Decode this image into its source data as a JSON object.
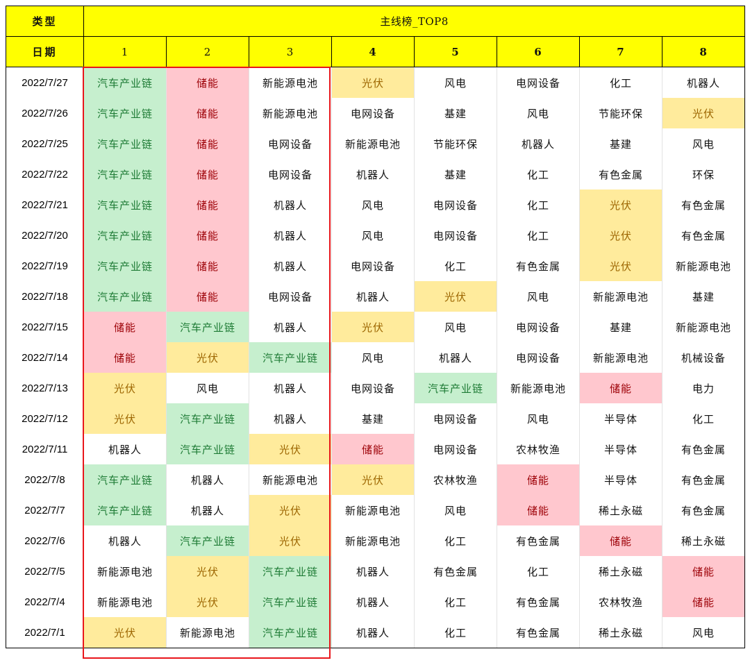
{
  "header": {
    "type_label": "类型",
    "table_title": "主线榜_TOP8",
    "date_label": "日期",
    "ranks": [
      "1",
      "2",
      "3",
      "4",
      "5",
      "6",
      "7",
      "8"
    ]
  },
  "highlight_colors": {
    "汽车产业链": "#c6efce",
    "储能": "#ffc7ce",
    "光伏": "#ffeb9c"
  },
  "header_color": "#ffff00",
  "focus_box_color": "#e8161b",
  "rows": [
    {
      "date": "2022/7/27",
      "sectors": [
        "汽车产业链",
        "储能",
        "新能源电池",
        "光伏",
        "风电",
        "电网设备",
        "化工",
        "机器人"
      ]
    },
    {
      "date": "2022/7/26",
      "sectors": [
        "汽车产业链",
        "储能",
        "新能源电池",
        "电网设备",
        "基建",
        "风电",
        "节能环保",
        "光伏"
      ]
    },
    {
      "date": "2022/7/25",
      "sectors": [
        "汽车产业链",
        "储能",
        "电网设备",
        "新能源电池",
        "节能环保",
        "机器人",
        "基建",
        "风电"
      ]
    },
    {
      "date": "2022/7/22",
      "sectors": [
        "汽车产业链",
        "储能",
        "电网设备",
        "机器人",
        "基建",
        "化工",
        "有色金属",
        "环保"
      ]
    },
    {
      "date": "2022/7/21",
      "sectors": [
        "汽车产业链",
        "储能",
        "机器人",
        "风电",
        "电网设备",
        "化工",
        "光伏",
        "有色金属"
      ]
    },
    {
      "date": "2022/7/20",
      "sectors": [
        "汽车产业链",
        "储能",
        "机器人",
        "风电",
        "电网设备",
        "化工",
        "光伏",
        "有色金属"
      ]
    },
    {
      "date": "2022/7/19",
      "sectors": [
        "汽车产业链",
        "储能",
        "机器人",
        "电网设备",
        "化工",
        "有色金属",
        "光伏",
        "新能源电池"
      ]
    },
    {
      "date": "2022/7/18",
      "sectors": [
        "汽车产业链",
        "储能",
        "电网设备",
        "机器人",
        "光伏",
        "风电",
        "新能源电池",
        "基建"
      ]
    },
    {
      "date": "2022/7/15",
      "sectors": [
        "储能",
        "汽车产业链",
        "机器人",
        "光伏",
        "风电",
        "电网设备",
        "基建",
        "新能源电池"
      ]
    },
    {
      "date": "2022/7/14",
      "sectors": [
        "储能",
        "光伏",
        "汽车产业链",
        "风电",
        "机器人",
        "电网设备",
        "新能源电池",
        "机械设备"
      ]
    },
    {
      "date": "2022/7/13",
      "sectors": [
        "光伏",
        "风电",
        "机器人",
        "电网设备",
        "汽车产业链",
        "新能源电池",
        "储能",
        "电力"
      ]
    },
    {
      "date": "2022/7/12",
      "sectors": [
        "光伏",
        "汽车产业链",
        "机器人",
        "基建",
        "电网设备",
        "风电",
        "半导体",
        "化工"
      ]
    },
    {
      "date": "2022/7/11",
      "sectors": [
        "机器人",
        "汽车产业链",
        "光伏",
        "储能",
        "电网设备",
        "农林牧渔",
        "半导体",
        "有色金属"
      ]
    },
    {
      "date": "2022/7/8",
      "sectors": [
        "汽车产业链",
        "机器人",
        "新能源电池",
        "光伏",
        "农林牧渔",
        "储能",
        "半导体",
        "有色金属"
      ]
    },
    {
      "date": "2022/7/7",
      "sectors": [
        "汽车产业链",
        "机器人",
        "光伏",
        "新能源电池",
        "风电",
        "储能",
        "稀土永磁",
        "有色金属"
      ]
    },
    {
      "date": "2022/7/6",
      "sectors": [
        "机器人",
        "汽车产业链",
        "光伏",
        "新能源电池",
        "化工",
        "有色金属",
        "储能",
        "稀土永磁"
      ]
    },
    {
      "date": "2022/7/5",
      "sectors": [
        "新能源电池",
        "光伏",
        "汽车产业链",
        "机器人",
        "有色金属",
        "化工",
        "稀土永磁",
        "储能"
      ]
    },
    {
      "date": "2022/7/4",
      "sectors": [
        "新能源电池",
        "光伏",
        "汽车产业链",
        "机器人",
        "化工",
        "有色金属",
        "农林牧渔",
        "储能"
      ]
    },
    {
      "date": "2022/7/1",
      "sectors": [
        "光伏",
        "新能源电池",
        "汽车产业链",
        "机器人",
        "化工",
        "有色金属",
        "稀土永磁",
        "风电"
      ]
    }
  ]
}
